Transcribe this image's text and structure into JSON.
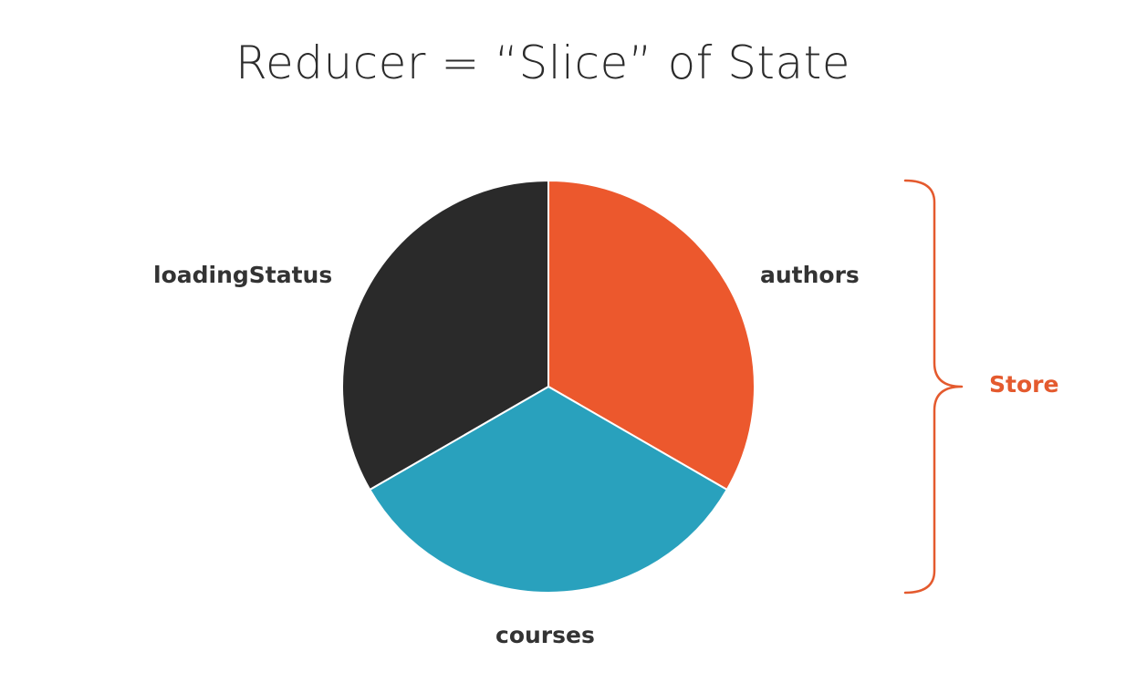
{
  "title": "Reducer = “Slice” of State",
  "chart_data": {
    "type": "pie",
    "slices": [
      {
        "label": "authors",
        "value": 1,
        "color": "#ec582d"
      },
      {
        "label": "courses",
        "value": 1,
        "color": "#29a1bd"
      },
      {
        "label": "loadingStatus",
        "value": 1,
        "color": "#2a2a2a"
      }
    ],
    "start": "12 o'clock",
    "direction": "clockwise"
  },
  "bracket": {
    "label": "Store",
    "color": "#e45a2e"
  }
}
